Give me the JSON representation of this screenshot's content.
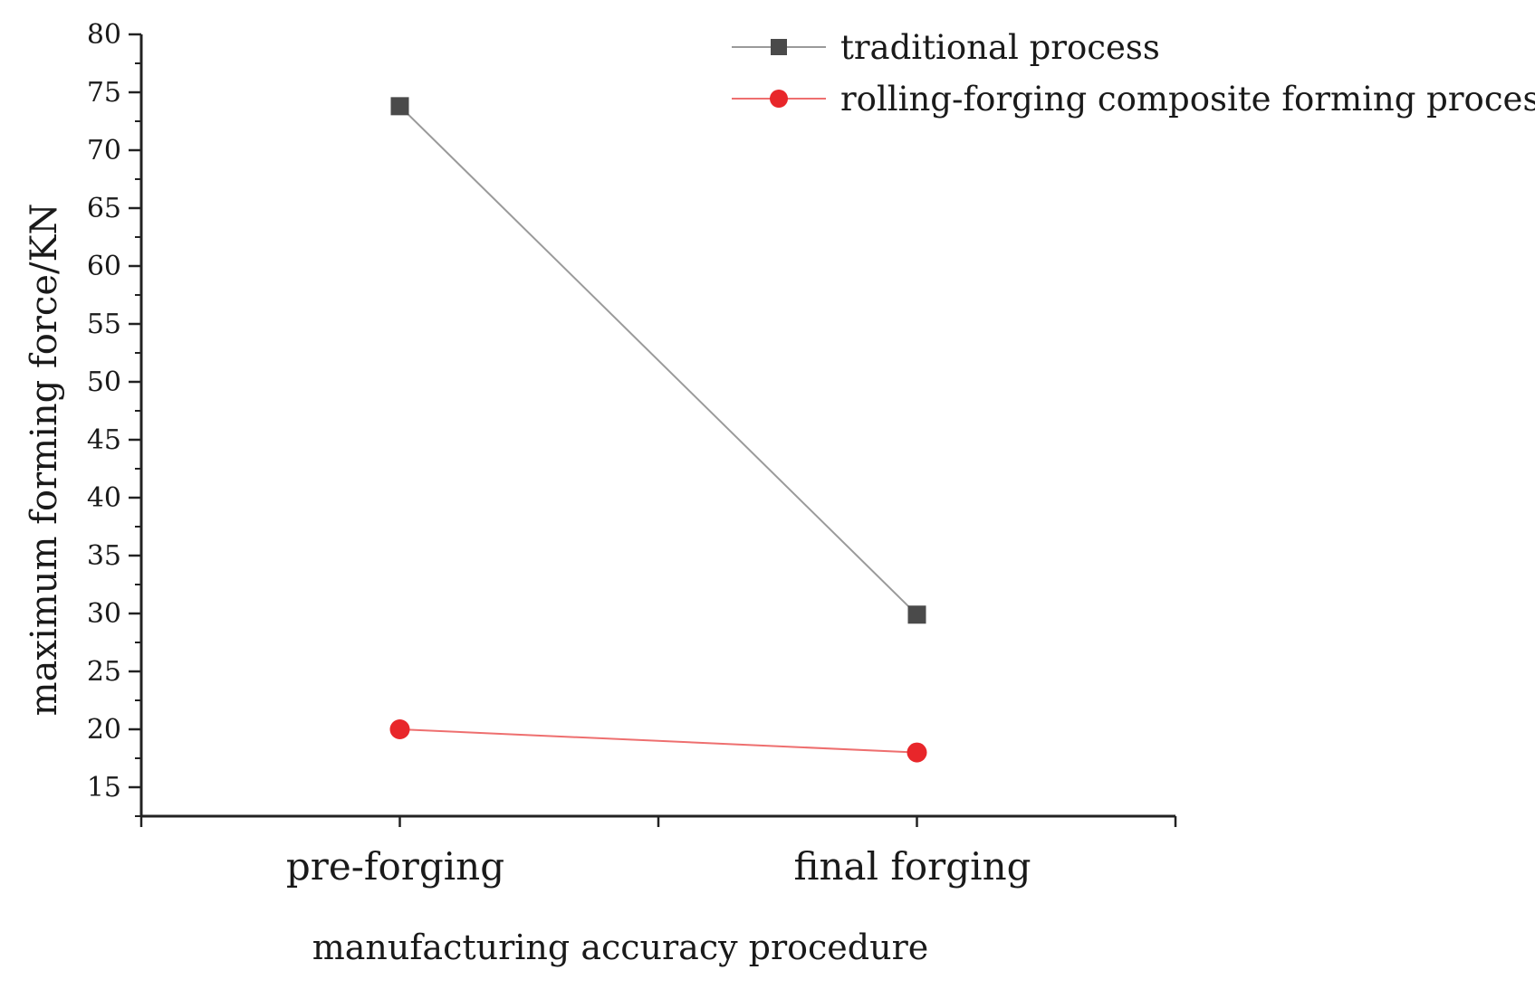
{
  "chart_data": {
    "type": "line",
    "title": "",
    "xlabel": "manufacturing accuracy procedure",
    "ylabel": "maximum forming force/KN",
    "categories": [
      "pre-forging",
      "final forging"
    ],
    "ylim": [
      12.5,
      80
    ],
    "yticks": [
      15,
      20,
      25,
      30,
      35,
      40,
      45,
      50,
      55,
      60,
      65,
      70,
      75,
      80
    ],
    "grid": false,
    "legend_position": "top-right",
    "series": [
      {
        "name": "traditional process",
        "values": [
          73.8,
          29.9
        ],
        "marker": "square",
        "line_color": "#9a9a9a",
        "marker_color": "#4a4a4a"
      },
      {
        "name": "rolling-forging composite forming process",
        "values": [
          20,
          18
        ],
        "marker": "circle",
        "line_color": "#ee6f6f",
        "marker_color": "#e8262a"
      }
    ]
  }
}
